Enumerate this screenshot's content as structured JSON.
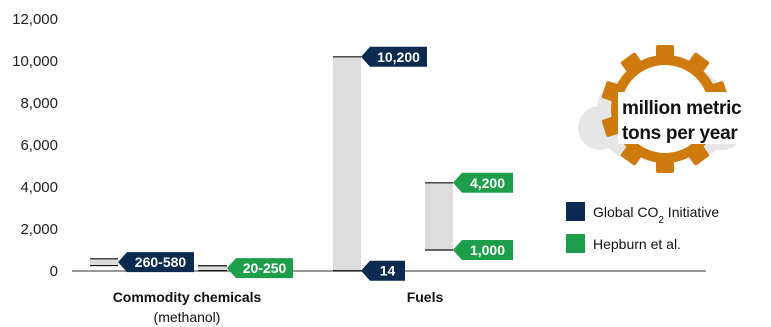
{
  "chart_data": {
    "type": "floating-range-bar",
    "ylim": [
      0,
      12000
    ],
    "yticks": [
      0,
      2000,
      4000,
      6000,
      8000,
      10000,
      12000
    ],
    "ytick_labels": [
      "0",
      "2,000",
      "4,000",
      "6,000",
      "8,000",
      "10,000",
      "12,000"
    ],
    "categories": [
      {
        "label": "Commodity chemicals",
        "sublabel": "(methanol)"
      },
      {
        "label": "Fuels",
        "sublabel": ""
      }
    ],
    "series": [
      {
        "name": "Global CO2 Initiative",
        "color": "#0b2a4f",
        "ranges": [
          {
            "low": 260,
            "high": 580,
            "label": "260-580"
          },
          {
            "low": 14,
            "high": 10200,
            "label_low": "14",
            "label_high": "10,200"
          }
        ]
      },
      {
        "name": "Hepburn et al.",
        "color": "#1e9e4a",
        "ranges": [
          {
            "low": 20,
            "high": 250,
            "label": "20-250"
          },
          {
            "low": 1000,
            "high": 4200,
            "label_low": "1,000",
            "label_high": "4,200"
          }
        ]
      }
    ],
    "legend": [
      {
        "name_main": "Global CO",
        "name_sub": "2",
        "name_tail": " Initiative",
        "color": "#0b2a4f"
      },
      {
        "name_main": "Hepburn et al.",
        "name_sub": "",
        "name_tail": "",
        "color": "#1e9e4a"
      }
    ],
    "legend_position": "right",
    "unit_badge": {
      "line1": "million metric",
      "line2": "tons per year",
      "icon": "gear-icon",
      "gear_color": "#cf7a0d"
    },
    "grid": false
  }
}
